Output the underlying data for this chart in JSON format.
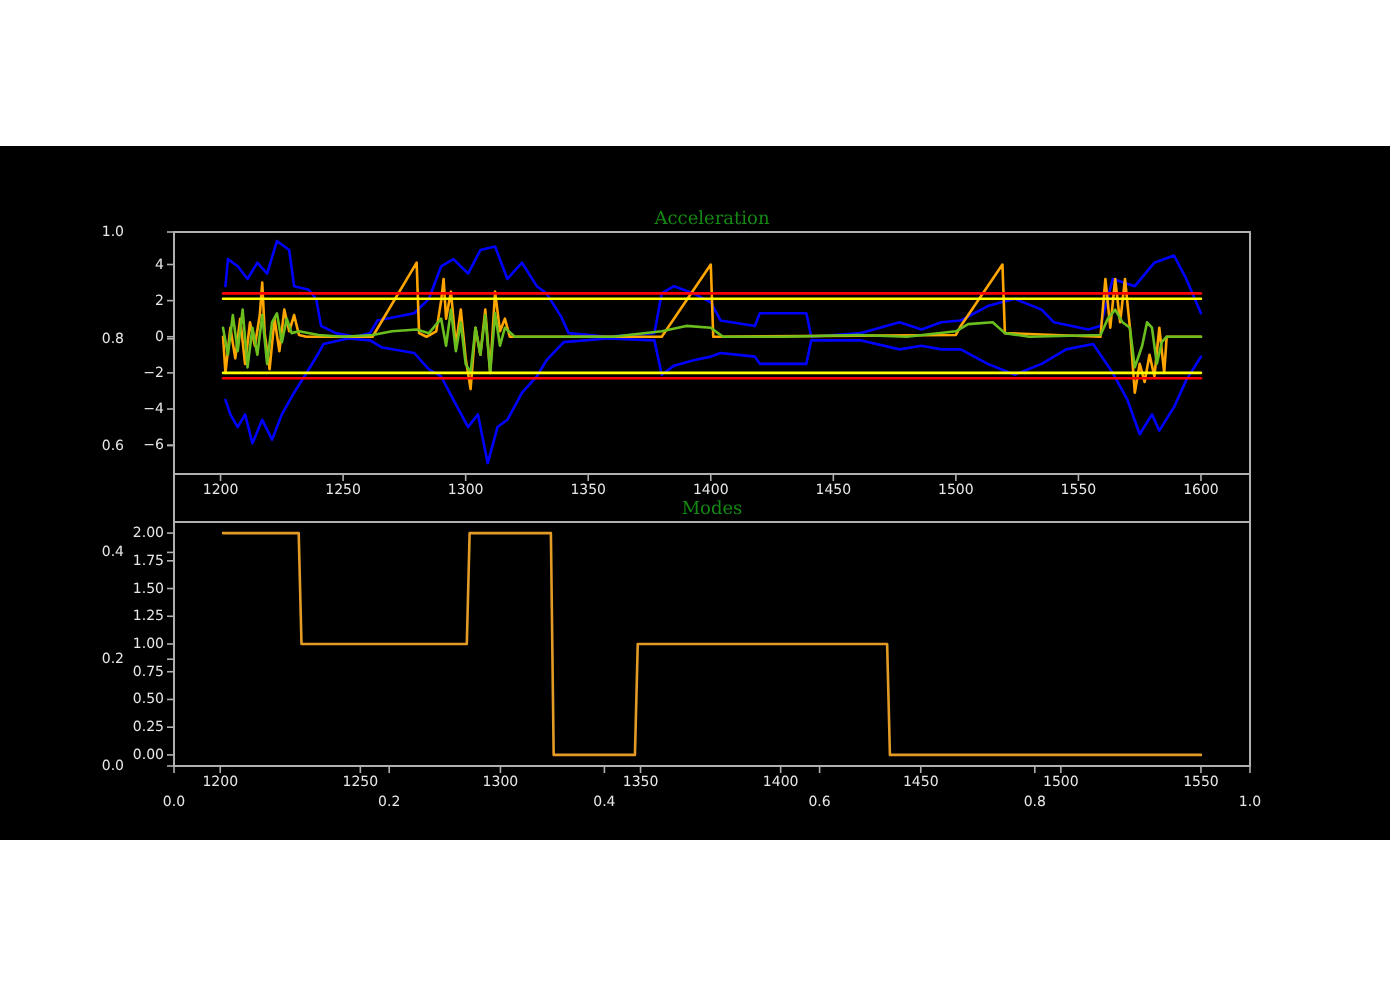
{
  "chart_data": [
    {
      "type": "line",
      "title": "Acceleration",
      "xlim": [
        1181,
        1620
      ],
      "ylim": [
        -7.6,
        5.8
      ],
      "xticks": [
        1200,
        1250,
        1300,
        1350,
        1400,
        1450,
        1500,
        1550,
        1600
      ],
      "yticks": [
        {
          "value": -6,
          "label": "−6"
        },
        {
          "value": -4,
          "label": "−4"
        },
        {
          "value": -2,
          "label": "−2"
        },
        0,
        2,
        4
      ],
      "series": [
        {
          "color": "#0000ff",
          "x": [
            1202,
            1203,
            1207,
            1211,
            1215,
            1219,
            1223,
            1228,
            1230,
            1236,
            1239,
            1241,
            1247,
            1255,
            1261,
            1264,
            1279,
            1285,
            1290,
            1295,
            1301,
            1306,
            1312,
            1317,
            1323,
            1329,
            1333,
            1339,
            1342,
            1358,
            1377,
            1380,
            1385,
            1393,
            1400,
            1404,
            1418,
            1420,
            1439,
            1441,
            1461,
            1477,
            1486,
            1494,
            1502,
            1513,
            1524,
            1535,
            1540,
            1554,
            1559,
            1564,
            1573,
            1581,
            1589,
            1594,
            1600
          ],
          "values": [
            2.8,
            4.3,
            3.9,
            3.2,
            4.1,
            3.5,
            5.3,
            4.8,
            2.8,
            2.6,
            2.1,
            0.6,
            0.2,
            0.0,
            0.2,
            0.9,
            1.3,
            2.1,
            3.9,
            4.3,
            3.5,
            4.8,
            5.0,
            3.2,
            4.1,
            2.8,
            2.4,
            1.1,
            0.2,
            0.0,
            0.2,
            2.4,
            2.8,
            2.4,
            1.9,
            0.9,
            0.6,
            1.3,
            1.3,
            0.0,
            0.2,
            0.8,
            0.4,
            0.8,
            0.9,
            1.7,
            2.1,
            1.5,
            0.8,
            0.4,
            0.6,
            3.2,
            2.8,
            4.1,
            4.5,
            3.2,
            1.3
          ]
        },
        {
          "color": "#0000ff",
          "x": [
            1202,
            1204,
            1207,
            1210,
            1213,
            1217,
            1221,
            1225,
            1230,
            1236,
            1240,
            1242,
            1252,
            1261,
            1266,
            1279,
            1285,
            1290,
            1295,
            1301,
            1305,
            1309,
            1313,
            1317,
            1323,
            1329,
            1333,
            1340,
            1358,
            1377,
            1380,
            1385,
            1393,
            1400,
            1404,
            1418,
            1420,
            1439,
            1441,
            1461,
            1477,
            1486,
            1494,
            1502,
            1513,
            1524,
            1535,
            1545,
            1556,
            1564,
            1570,
            1575,
            1580,
            1583,
            1589,
            1594,
            1600
          ],
          "values": [
            -3.5,
            -4.3,
            -5.0,
            -4.3,
            -5.9,
            -4.6,
            -5.7,
            -4.3,
            -3.1,
            -1.8,
            -0.9,
            -0.4,
            -0.1,
            -0.2,
            -0.6,
            -0.9,
            -1.8,
            -2.2,
            -3.5,
            -5.0,
            -4.3,
            -7.0,
            -5.0,
            -4.6,
            -3.1,
            -2.2,
            -1.3,
            -0.3,
            -0.1,
            -0.2,
            -2.1,
            -1.6,
            -1.3,
            -1.1,
            -0.9,
            -1.1,
            -1.5,
            -1.5,
            -0.2,
            -0.2,
            -0.7,
            -0.5,
            -0.7,
            -0.7,
            -1.5,
            -2.1,
            -1.5,
            -0.7,
            -0.4,
            -2.0,
            -3.5,
            -5.4,
            -4.3,
            -5.2,
            -3.9,
            -2.4,
            -1.1
          ]
        },
        {
          "color": "#ffa500",
          "x": [
            1201,
            1202,
            1204,
            1206,
            1208,
            1210,
            1212,
            1214,
            1216,
            1217,
            1218,
            1220,
            1222,
            1224,
            1226,
            1228,
            1230,
            1232,
            1235,
            1262,
            1280,
            1281,
            1284,
            1288,
            1290,
            1291,
            1292,
            1294,
            1296,
            1298,
            1300,
            1302,
            1304,
            1306,
            1308,
            1310,
            1312,
            1314,
            1316,
            1318,
            1380,
            1400,
            1401,
            1500,
            1502,
            1519,
            1520,
            1559,
            1561,
            1563,
            1565,
            1567,
            1569,
            1571,
            1573,
            1575,
            1577,
            1579,
            1581,
            1583,
            1585,
            1586,
            1600
          ],
          "values": [
            0.0,
            -2.0,
            0.5,
            -1.2,
            1.0,
            -1.5,
            0.8,
            -0.5,
            1.2,
            3.0,
            0.2,
            -1.8,
            1.0,
            -0.8,
            1.5,
            0.3,
            1.2,
            0.1,
            0.0,
            0.0,
            4.1,
            0.2,
            0.0,
            0.3,
            2.0,
            3.2,
            1.0,
            2.5,
            -0.5,
            1.5,
            -1.2,
            -2.9,
            0.5,
            -1.0,
            1.5,
            -2.0,
            2.5,
            0.3,
            1.0,
            0.0,
            0.0,
            4.0,
            0.0,
            0.1,
            0.6,
            4.0,
            0.2,
            0.0,
            3.2,
            0.5,
            3.2,
            0.8,
            3.2,
            0.5,
            -3.1,
            -1.5,
            -2.5,
            -1.0,
            -2.2,
            0.5,
            -2.0,
            0.0,
            0.0
          ]
        },
        {
          "color": "#6abf1f",
          "x": [
            1201,
            1203,
            1205,
            1207,
            1209,
            1211,
            1213,
            1215,
            1217,
            1219,
            1221,
            1223,
            1225,
            1227,
            1229,
            1232,
            1240,
            1250,
            1262,
            1270,
            1280,
            1285,
            1290,
            1292,
            1294,
            1296,
            1298,
            1300,
            1302,
            1304,
            1306,
            1308,
            1310,
            1312,
            1314,
            1316,
            1320,
            1340,
            1360,
            1380,
            1390,
            1400,
            1405,
            1430,
            1460,
            1480,
            1500,
            1505,
            1515,
            1520,
            1530,
            1559,
            1562,
            1565,
            1568,
            1571,
            1573,
            1576,
            1578,
            1580,
            1582,
            1584,
            1586,
            1600
          ],
          "values": [
            0.5,
            -1.0,
            1.2,
            -0.8,
            1.5,
            -1.7,
            0.5,
            -1.0,
            1.2,
            -1.5,
            0.8,
            1.3,
            -0.3,
            1.0,
            0.2,
            0.3,
            0.1,
            0.0,
            0.1,
            0.3,
            0.4,
            0.2,
            1.0,
            -0.5,
            1.5,
            -0.8,
            0.8,
            -1.5,
            -2.0,
            0.5,
            -1.0,
            1.2,
            -2.0,
            1.3,
            -0.5,
            0.5,
            0.0,
            0.0,
            0.0,
            0.3,
            0.6,
            0.5,
            0.0,
            0.0,
            0.1,
            0.0,
            0.3,
            0.7,
            0.8,
            0.2,
            0.0,
            0.1,
            1.0,
            1.5,
            0.8,
            0.5,
            -1.7,
            -0.5,
            0.8,
            0.5,
            -1.5,
            -0.3,
            0.0,
            0.0
          ]
        },
        {
          "color": "#ffff00",
          "x": [
            1201,
            1600
          ],
          "values": [
            2.1,
            2.1
          ]
        },
        {
          "color": "#ffff00",
          "x": [
            1201,
            1600
          ],
          "values": [
            -2.0,
            -2.0
          ]
        },
        {
          "color": "#ff0000",
          "x": [
            1201,
            1600
          ],
          "values": [
            2.4,
            2.4
          ]
        },
        {
          "color": "#ff0000",
          "x": [
            1201,
            1600
          ],
          "values": [
            -2.3,
            -2.3
          ]
        }
      ]
    },
    {
      "type": "line",
      "title": "Modes",
      "xlim": [
        1183.5,
        1567.5
      ],
      "ylim": [
        -0.1,
        2.1
      ],
      "xticks": [
        1200,
        1250,
        1300,
        1350,
        1400,
        1450,
        1500,
        1550
      ],
      "yticks": [
        {
          "value": 0,
          "label": "0.00"
        },
        0.25,
        {
          "value": 0.5,
          "label": "0.50"
        },
        0.75,
        {
          "value": 1,
          "label": "1.00"
        },
        1.25,
        {
          "value": 1.5,
          "label": "1.50"
        },
        1.75,
        {
          "value": 2,
          "label": "2.00"
        }
      ],
      "series": [
        {
          "color": "#e39b26",
          "x": [
            1201,
            1228,
            1229,
            1288,
            1289,
            1318,
            1319,
            1348,
            1349,
            1438,
            1439,
            1550
          ],
          "values": [
            2,
            2,
            1,
            1,
            2,
            2,
            0,
            0,
            1,
            1,
            0,
            0
          ]
        }
      ]
    },
    {
      "type": "line",
      "xlim": [
        0,
        1
      ],
      "ylim": [
        0,
        1
      ],
      "xticks": [
        {
          "value": 0,
          "label": "0.0"
        },
        0.2,
        0.4,
        0.6,
        0.8,
        {
          "value": 1,
          "label": "1.0"
        }
      ],
      "yticks": [
        {
          "value": 0,
          "label": "0.0"
        },
        0.2,
        0.4,
        0.6,
        0.8,
        {
          "value": 1,
          "label": "1.0"
        }
      ]
    }
  ]
}
